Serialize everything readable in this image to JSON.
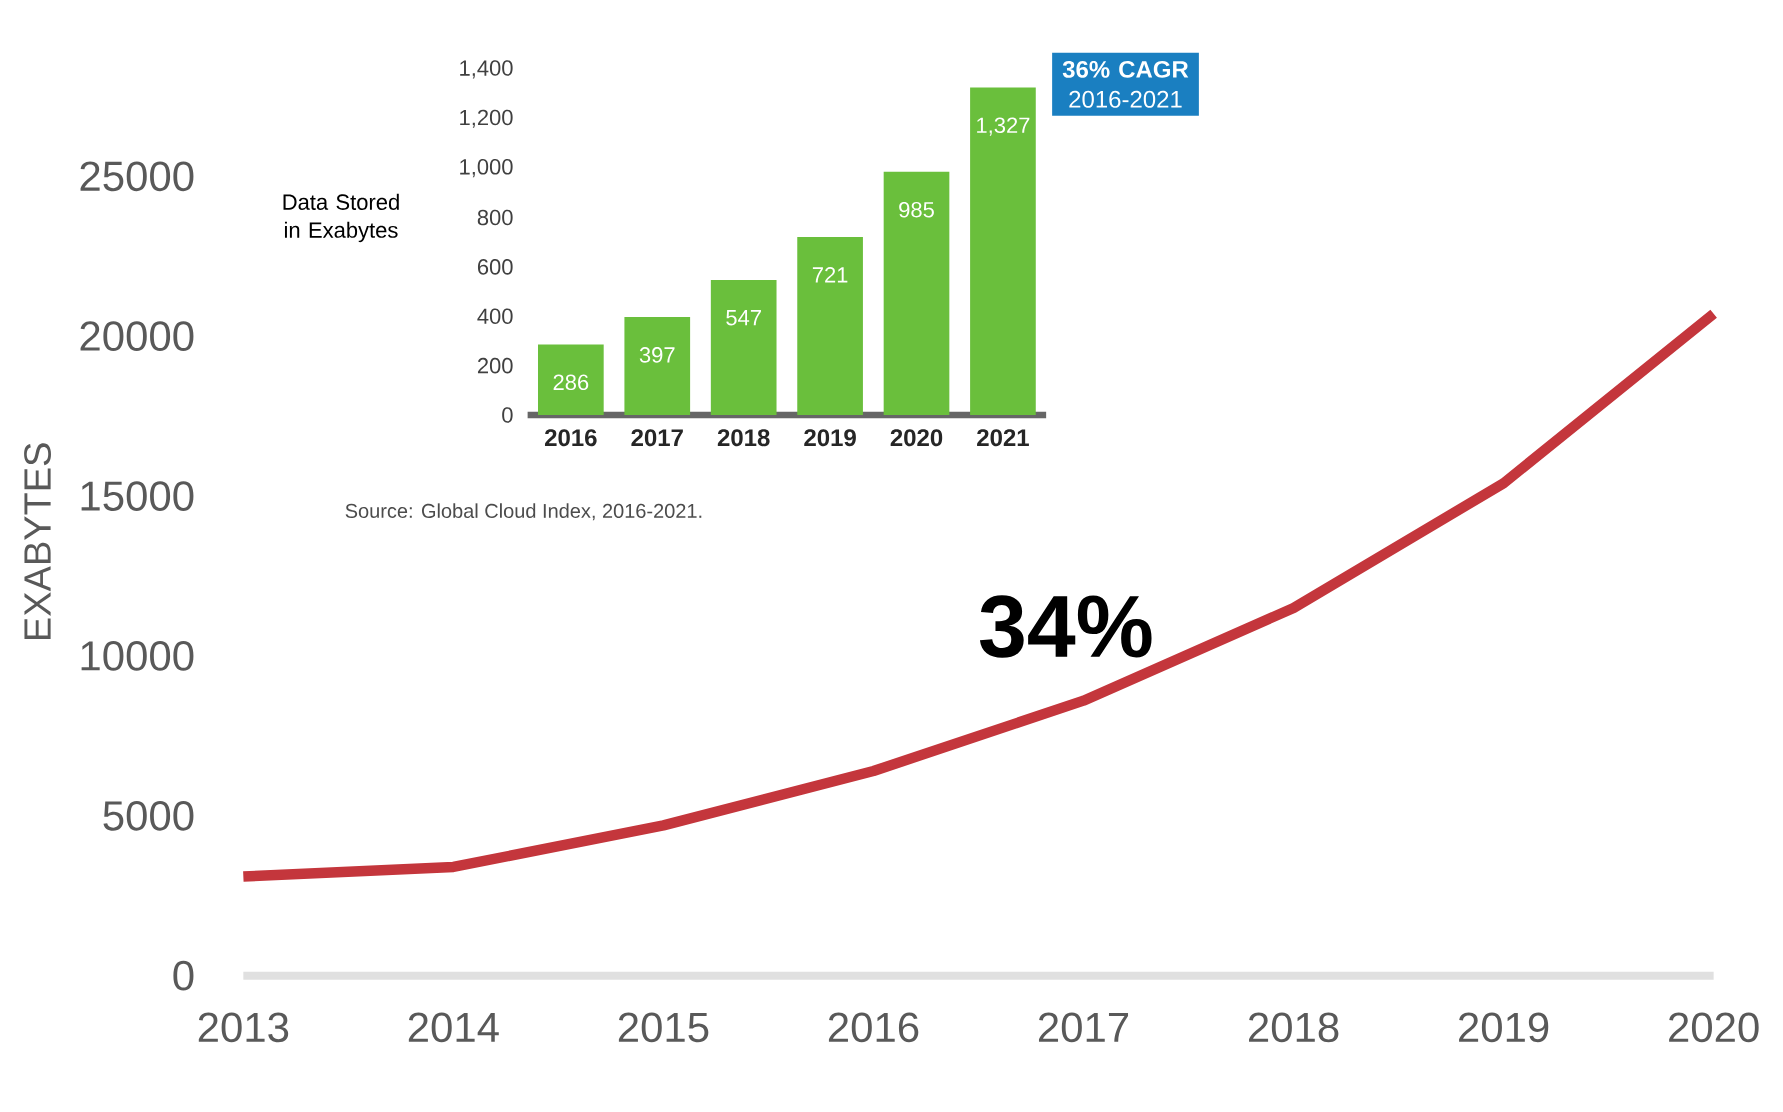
{
  "chart_data": [
    {
      "type": "line",
      "x": [
        2013,
        2014,
        2015,
        2016,
        2017,
        2018,
        2019,
        2020
      ],
      "values": [
        3100,
        3400,
        4700,
        6400,
        8600,
        11500,
        15400,
        20700
      ],
      "color": "#c4363c",
      "xlim": [
        2013,
        2020
      ],
      "xticks": [
        2013,
        2014,
        2015,
        2016,
        2017,
        2018,
        2019,
        2020
      ],
      "ylim": [
        0,
        25000
      ],
      "yticks": [
        0,
        5000,
        10000,
        15000,
        20000,
        25000
      ],
      "ylabel": "EXABYTES",
      "annotations": [
        "34%"
      ]
    },
    {
      "type": "bar",
      "categories": [
        "2016",
        "2017",
        "2018",
        "2019",
        "2020",
        "2021"
      ],
      "values": [
        286,
        397,
        547,
        721,
        985,
        1327
      ],
      "color": "#6abf3c",
      "value_labels": [
        "286",
        "397",
        "547",
        "721",
        "985",
        "1,327"
      ],
      "ylim": [
        0,
        1400
      ],
      "yticks": [
        0,
        200,
        400,
        600,
        800,
        {
          "value": 1000,
          "label": "1,000"
        },
        {
          "value": 1200,
          "label": "1,200"
        },
        {
          "value": 1400,
          "label": "1,400"
        }
      ],
      "ylabel": "Data Stored in Exabytes",
      "annotations": [
        "**36% CAGR** 2016-2021",
        "Source: Global Cloud Index, 2016-2021."
      ]
    }
  ]
}
